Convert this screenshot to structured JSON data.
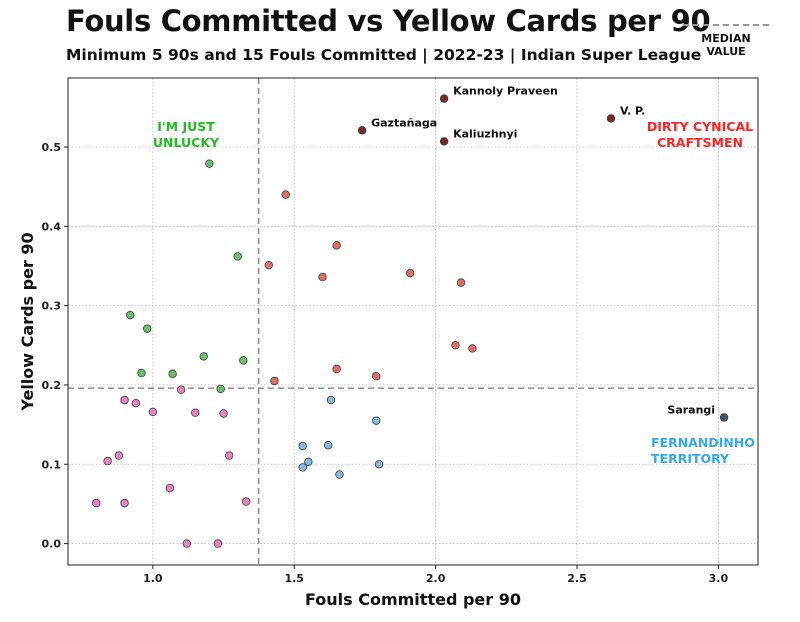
{
  "chart_data": {
    "type": "scatter",
    "title": "Fouls Committed vs Yellow Cards per 90",
    "subtitle": "Minimum 5 90s and 15 Fouls Committed | 2022-23 | Indian Super League",
    "xlabel": "Fouls Committed per 90",
    "ylabel": "Yellow Cards per 90",
    "xlim": [
      0.7,
      3.14
    ],
    "ylim": [
      -0.027,
      0.587
    ],
    "x_ticks": [
      "1.0",
      "1.5",
      "2.0",
      "2.5",
      "3.0"
    ],
    "y_ticks": [
      "0.0",
      "0.1",
      "0.2",
      "0.3",
      "0.4",
      "0.5"
    ],
    "grid": true,
    "median_x": 1.374,
    "median_y": 0.196,
    "legend": {
      "label": "MEDIAN VALUE",
      "placement": "top-right outside plot"
    },
    "quadrant_labels": [
      {
        "text": "I'M JUST UNLUCKY",
        "lines": [
          "I'M JUST",
          "UNLUCKY"
        ],
        "color": "#22bb22",
        "position": "top-left"
      },
      {
        "text": "DIRTY CYNICAL CRAFTSMEN",
        "lines": [
          "DIRTY CYNICAL",
          "CRAFTSMEN"
        ],
        "color": "#ff2222",
        "position": "top-right"
      },
      {
        "text": "FERNANDINHO TERRITORY",
        "lines": [
          "FERNANDINHO",
          "TERRITORY"
        ],
        "color": "#33aaee",
        "position": "bottom-right"
      }
    ],
    "colors": {
      "green": "#6cc06c",
      "red": "#e07065",
      "blue": "#8ab9df",
      "pink": "#e585c2",
      "dark_red": "#7a2a25",
      "dark_blue": "#3a5670"
    },
    "series": [
      {
        "name": "",
        "color": "green",
        "points": [
          [
            1.2,
            0.479
          ],
          [
            1.3,
            0.362
          ],
          [
            0.92,
            0.288
          ],
          [
            0.98,
            0.271
          ],
          [
            1.18,
            0.236
          ],
          [
            1.32,
            0.231
          ],
          [
            0.96,
            0.215
          ],
          [
            1.07,
            0.214
          ],
          [
            1.24,
            0.195
          ]
        ]
      },
      {
        "name": "",
        "color": "red",
        "points": [
          [
            1.47,
            0.44
          ],
          [
            1.65,
            0.376
          ],
          [
            1.41,
            0.351
          ],
          [
            1.6,
            0.336
          ],
          [
            1.91,
            0.341
          ],
          [
            2.09,
            0.329
          ],
          [
            2.07,
            0.25
          ],
          [
            2.13,
            0.246
          ],
          [
            1.65,
            0.22
          ],
          [
            1.79,
            0.211
          ],
          [
            1.43,
            0.205
          ]
        ]
      },
      {
        "name": "",
        "color": "blue",
        "points": [
          [
            1.63,
            0.181
          ],
          [
            1.79,
            0.155
          ],
          [
            1.53,
            0.123
          ],
          [
            1.62,
            0.124
          ],
          [
            1.55,
            0.103
          ],
          [
            1.53,
            0.096
          ],
          [
            1.8,
            0.1
          ],
          [
            1.66,
            0.087
          ]
        ]
      },
      {
        "name": "",
        "color": "pink",
        "points": [
          [
            0.9,
            0.181
          ],
          [
            0.94,
            0.177
          ],
          [
            1.1,
            0.194
          ],
          [
            1.0,
            0.166
          ],
          [
            1.15,
            0.165
          ],
          [
            1.25,
            0.164
          ],
          [
            0.88,
            0.111
          ],
          [
            0.84,
            0.104
          ],
          [
            1.27,
            0.111
          ],
          [
            1.06,
            0.07
          ],
          [
            1.33,
            0.053
          ],
          [
            0.8,
            0.051
          ],
          [
            0.9,
            0.051
          ],
          [
            1.12,
            0.0
          ],
          [
            1.23,
            0.0
          ]
        ]
      },
      {
        "name": "",
        "color": "dark_red",
        "points": [
          [
            2.03,
            0.561
          ],
          [
            1.74,
            0.521
          ],
          [
            2.03,
            0.507
          ],
          [
            2.62,
            0.536
          ]
        ]
      },
      {
        "name": "",
        "color": "dark_blue",
        "points": [
          [
            3.02,
            0.159
          ]
        ]
      }
    ],
    "annotations": [
      {
        "text": "Kannoly Praveen",
        "x": 2.03,
        "y": 0.561,
        "side": "right"
      },
      {
        "text": "Gaztañaga",
        "x": 1.74,
        "y": 0.521,
        "side": "right"
      },
      {
        "text": "Kaliuzhnyi",
        "x": 2.03,
        "y": 0.507,
        "side": "right"
      },
      {
        "text": "V. P.",
        "x": 2.62,
        "y": 0.536,
        "side": "right"
      },
      {
        "text": "Sarangi",
        "x": 3.02,
        "y": 0.159,
        "side": "left"
      }
    ]
  }
}
